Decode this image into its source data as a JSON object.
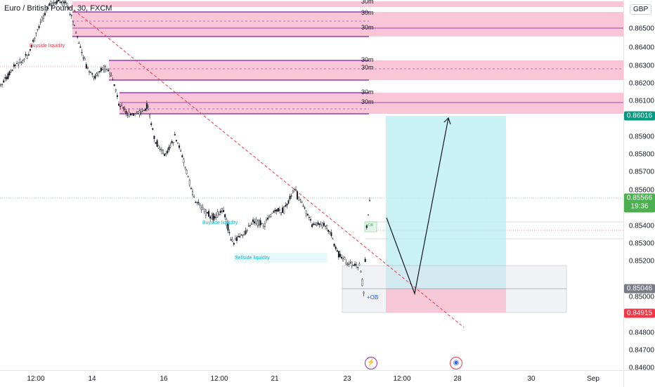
{
  "chart": {
    "title": "Euro / British Pound, 30, FXCM",
    "currency": "GBP"
  },
  "price_scale": {
    "ticks": [
      "0.86500",
      "0.86400",
      "0.86300",
      "0.86200",
      "0.86100",
      "0.85900",
      "0.85800",
      "0.85700",
      "0.85600",
      "0.85400",
      "0.85300",
      "0.85200",
      "0.85000",
      "0.84800",
      "0.84700",
      "0.84600"
    ],
    "labels": {
      "target": {
        "value": "0.86016",
        "color": "#089981"
      },
      "current": {
        "value": "0.85566",
        "countdown": "19:36",
        "color": "#4caf50"
      },
      "entry": {
        "value": "0.85046",
        "color": "#787b86"
      },
      "stop": {
        "value": "0.84915",
        "color": "#f23645"
      }
    }
  },
  "time_scale": {
    "ticks": [
      "12:00",
      "14",
      "16",
      "12:00",
      "21",
      "23",
      "12:00",
      "28",
      "30",
      "Sep"
    ]
  },
  "zones": {
    "label": "30m"
  },
  "annotations": {
    "buyside": "Buyside liquidity",
    "sellside": "Sellside liquidity",
    "ob": "+OB",
    "ob_small": "+OB"
  },
  "colors": {
    "supply_zone": "#f8bbd0",
    "supply_border": "#7b1fa2",
    "target_zone": "#b2ebf2",
    "stop_zone": "#f8bbd0",
    "up_candle": "#131722",
    "trendline": "#f23645"
  },
  "icons": {
    "lightning": "lightning-icon",
    "globe": "globe-icon"
  }
}
